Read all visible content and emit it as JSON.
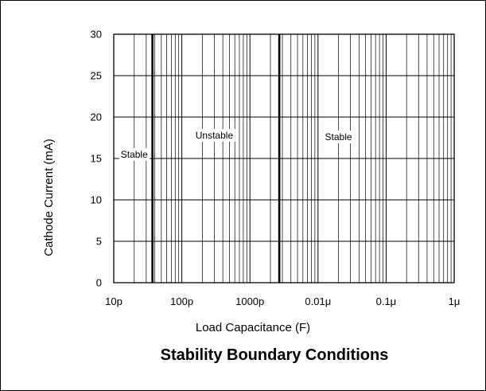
{
  "chart_data": {
    "type": "line",
    "title": "Stability Boundary Conditions",
    "xlabel": "Load Capacitance (F)",
    "ylabel": "Cathode Current (mA)",
    "x_scale": "log",
    "xlim": [
      1e-11,
      1e-06
    ],
    "ylim": [
      0,
      30
    ],
    "grid": true,
    "x_ticks": [
      {
        "value": 1e-11,
        "label": "10p"
      },
      {
        "value": 1e-10,
        "label": "100p"
      },
      {
        "value": 1e-09,
        "label": "1000p"
      },
      {
        "value": 1e-08,
        "label": "0.01μ"
      },
      {
        "value": 1e-07,
        "label": "0.1μ"
      },
      {
        "value": 1e-06,
        "label": "1μ"
      }
    ],
    "y_ticks": [
      {
        "value": 0,
        "label": "0"
      },
      {
        "value": 5,
        "label": "5"
      },
      {
        "value": 10,
        "label": "10"
      },
      {
        "value": 15,
        "label": "15"
      },
      {
        "value": 20,
        "label": "20"
      },
      {
        "value": 25,
        "label": "25"
      },
      {
        "value": 30,
        "label": "30"
      }
    ],
    "boundaries": [
      {
        "x": 3.7e-11,
        "y": [
          0,
          30
        ]
      },
      {
        "x": 2.7e-09,
        "y": [
          0,
          30
        ]
      }
    ],
    "regions": [
      {
        "label": "Stable",
        "x": 2e-11,
        "y": 15.5
      },
      {
        "label": "Unstable",
        "x": 3e-10,
        "y": 17.8
      },
      {
        "label": "Stable",
        "x": 2e-08,
        "y": 17.6
      }
    ]
  }
}
